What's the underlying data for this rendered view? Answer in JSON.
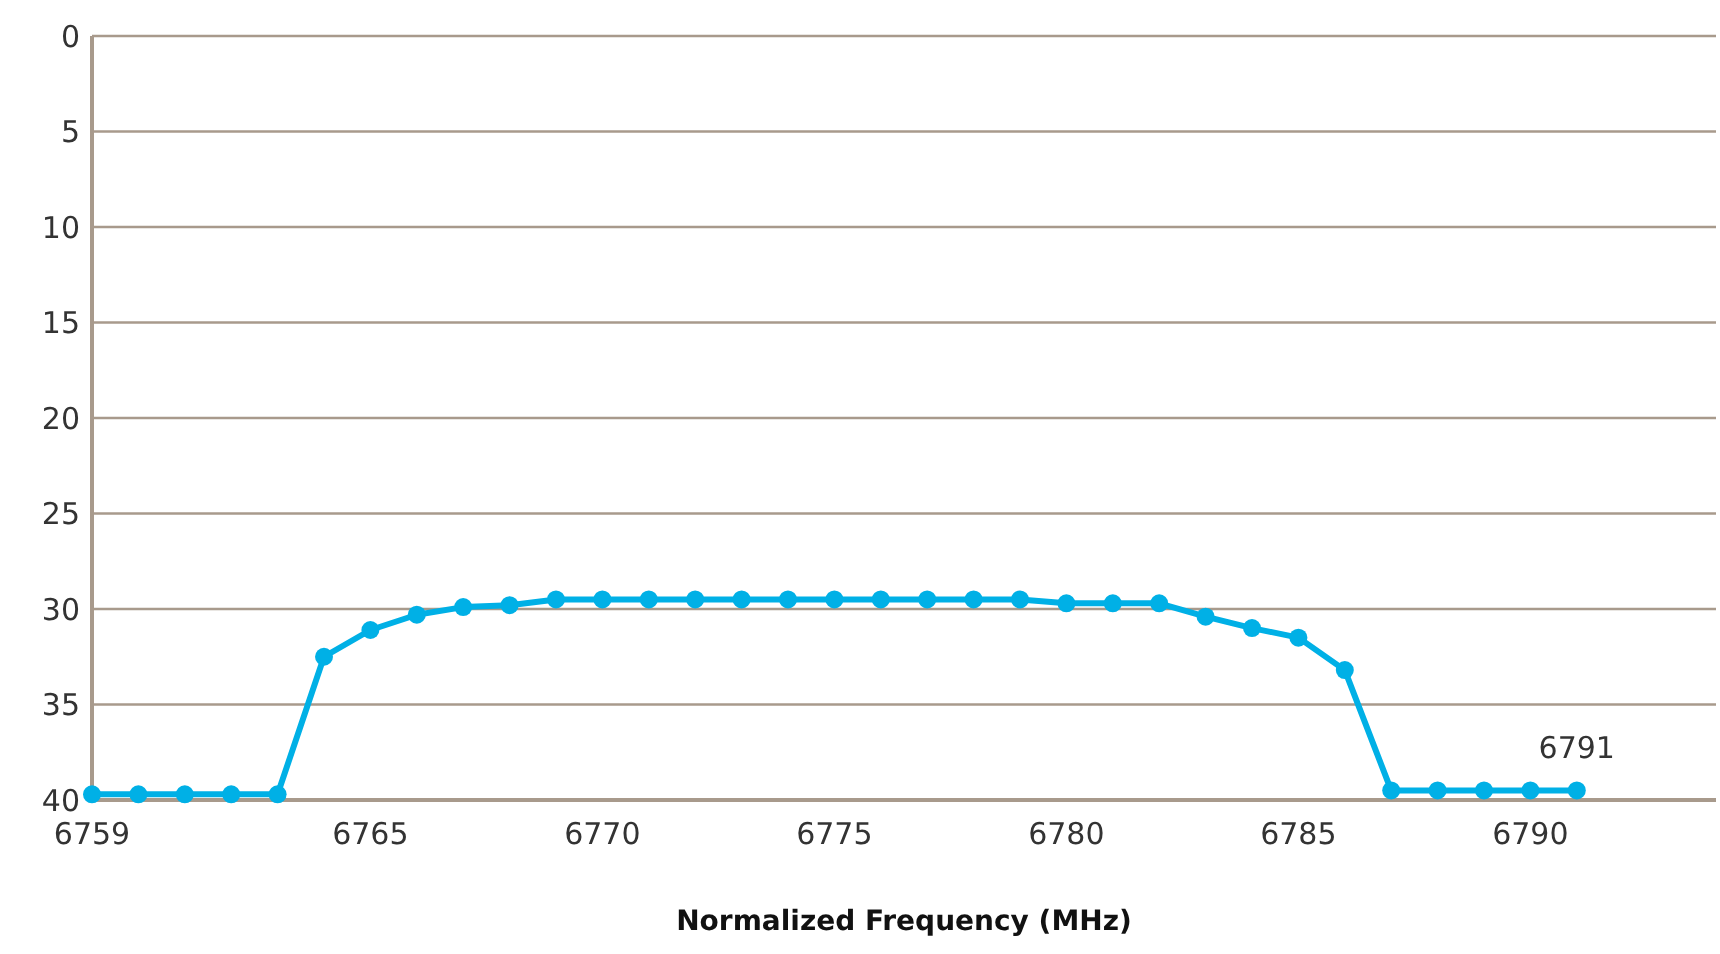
{
  "chart_data": {
    "type": "line",
    "xlabel": "Normalized Frequency (MHz)",
    "x": [
      6759,
      6760,
      6761,
      6762,
      6763,
      6764,
      6765,
      6766,
      6767,
      6768,
      6769,
      6770,
      6771,
      6772,
      6773,
      6774,
      6775,
      6776,
      6777,
      6778,
      6779,
      6780,
      6781,
      6782,
      6783,
      6784,
      6785,
      6786,
      6787,
      6788,
      6789,
      6790,
      6791
    ],
    "series": [
      {
        "color": "#00b0e6",
        "values": [
          39.7,
          39.7,
          39.7,
          39.7,
          39.7,
          32.5,
          31.1,
          30.3,
          29.9,
          29.8,
          29.5,
          29.5,
          29.5,
          29.5,
          29.5,
          29.5,
          29.5,
          29.5,
          29.5,
          29.5,
          29.5,
          29.7,
          29.7,
          29.7,
          30.4,
          31.0,
          31.5,
          33.2,
          39.5,
          39.5,
          39.5,
          39.5,
          39.5
        ]
      }
    ],
    "xlim": [
      6759,
      6794
    ],
    "xticks": [
      6759,
      6765,
      6770,
      6775,
      6780,
      6785,
      6790
    ],
    "ylim": [
      40,
      0
    ],
    "yticks": [
      0,
      5,
      10,
      15,
      20,
      25,
      30,
      35,
      40
    ],
    "grid": "y",
    "marker": "circle",
    "line_style": "solid",
    "annotations": [
      {
        "text": "6791",
        "x": 6791,
        "y": 39.5
      }
    ]
  }
}
